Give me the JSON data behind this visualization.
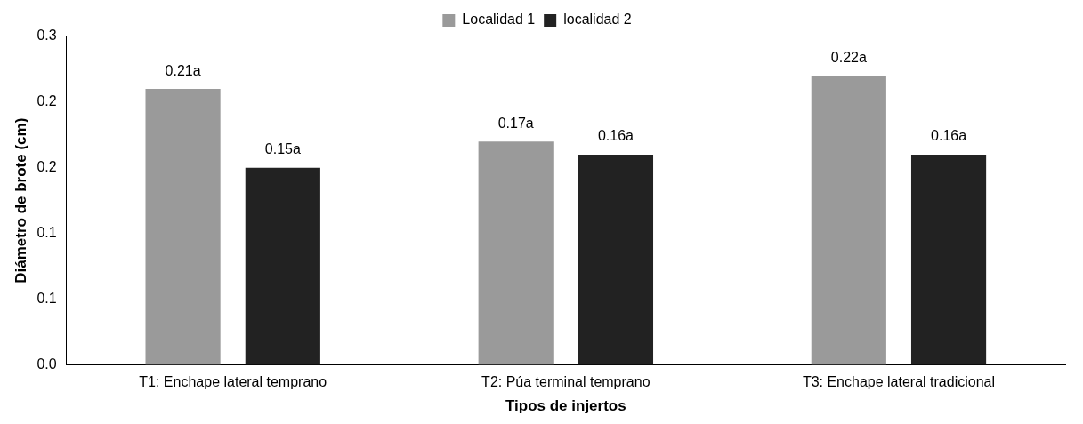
{
  "chart_data": {
    "type": "bar",
    "xlabel": "Tipos de injertos",
    "ylabel": "Diámetro de brote (cm)",
    "categories": [
      "T1: Enchape lateral temprano",
      "T2: Púa terminal temprano",
      "T3: Enchape lateral tradicional"
    ],
    "series": [
      {
        "name": "Localidad 1",
        "color": "#9a9a9a",
        "values": [
          0.21,
          0.17,
          0.22
        ],
        "value_labels": [
          "0.21a",
          "0.17a",
          "0.22a"
        ]
      },
      {
        "name": "localidad 2",
        "color": "#222222",
        "values": [
          0.15,
          0.16,
          0.16
        ],
        "value_labels": [
          "0.15a",
          "0.16a",
          "0.16a"
        ]
      }
    ],
    "ylim": [
      0,
      0.25
    ],
    "yticks": [
      {
        "value": 0,
        "label": "0.0"
      },
      {
        "value": 0.05,
        "label": "0.1"
      },
      {
        "value": 0.1,
        "label": "0.1"
      },
      {
        "value": 0.15,
        "label": "0.2"
      },
      {
        "value": 0.2,
        "label": "0.2"
      },
      {
        "value": 0.25,
        "label": "0.3"
      }
    ],
    "grid": false,
    "legend": "top"
  }
}
